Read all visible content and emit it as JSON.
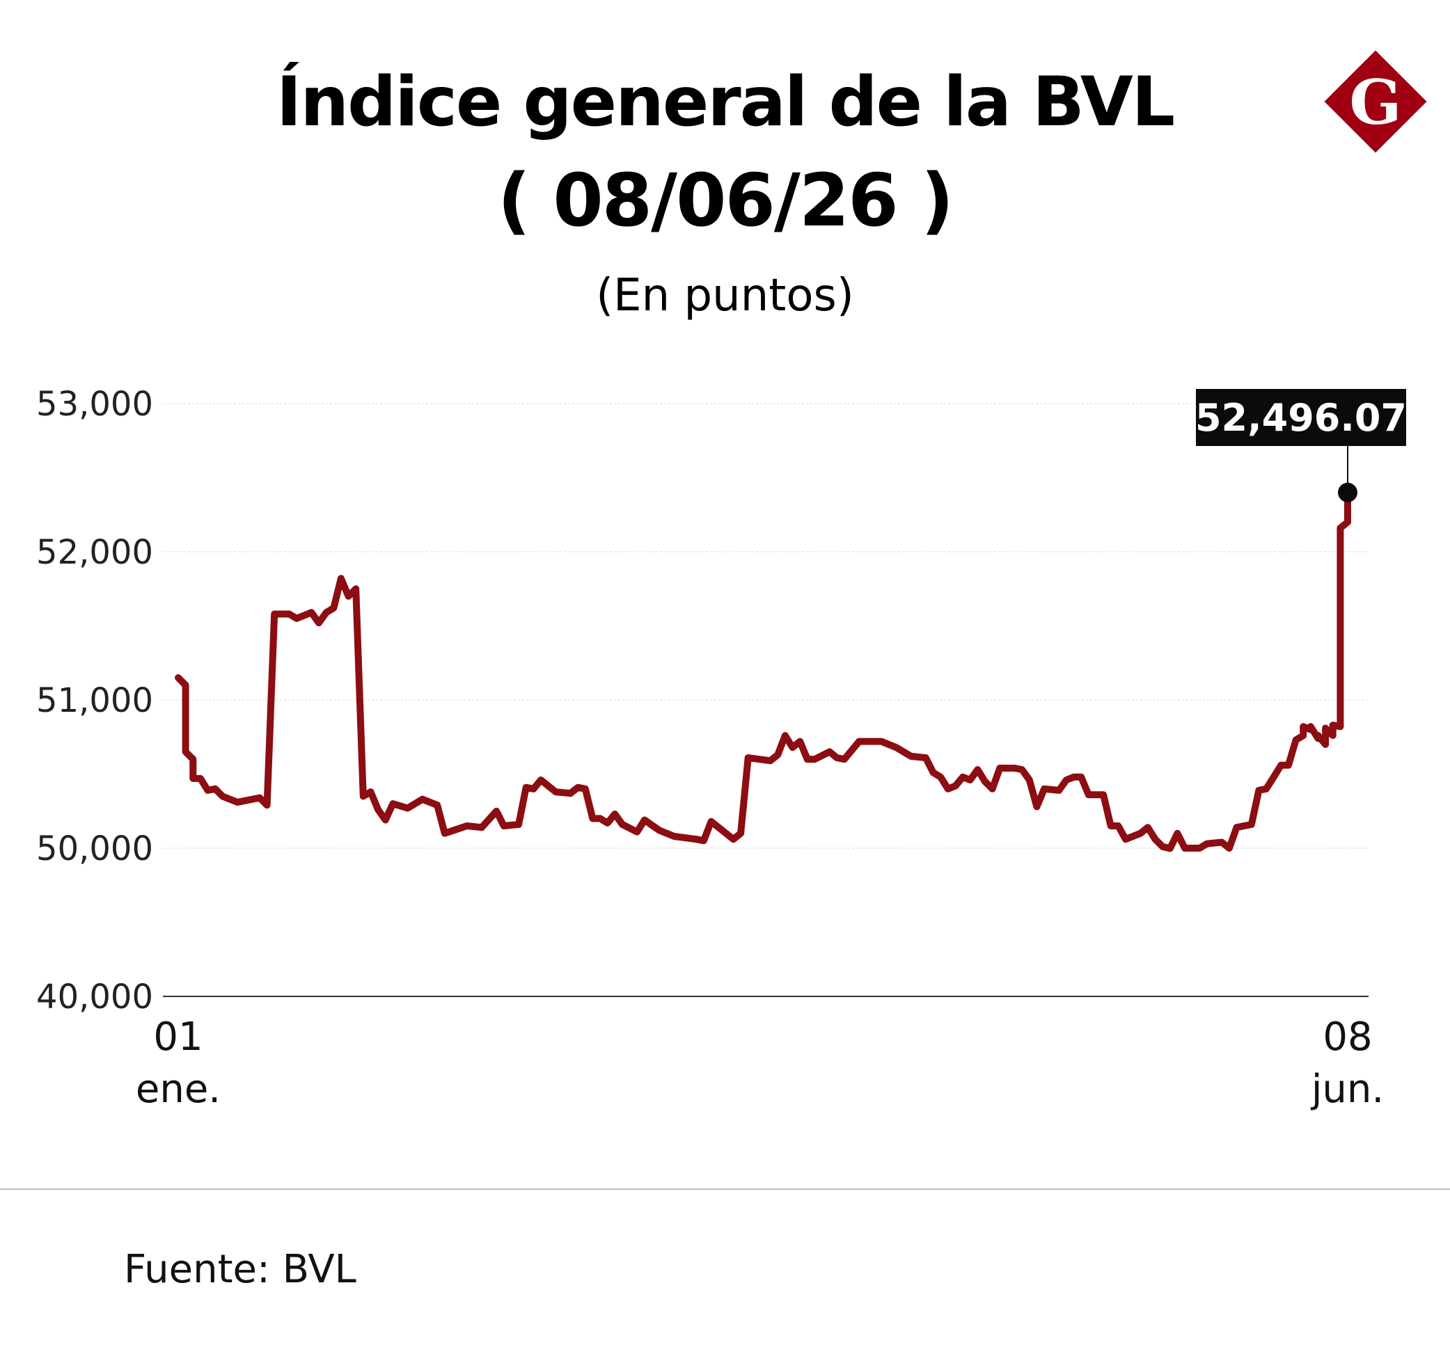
{
  "header": {
    "title_line_1": "Índice general de la BVL",
    "title_line_2": "( 08/06/26 )",
    "subtitle": "(En puntos)"
  },
  "logo": {
    "letter": "G",
    "color": "#a00012",
    "icon": "diamond-g-logo"
  },
  "footer": {
    "source": "Fuente: BVL"
  },
  "chart_data": {
    "type": "line",
    "title": "Índice general de la BVL",
    "subtitle": "(En puntos)",
    "y_ticks": [
      "53,000",
      "52,000",
      "51,000",
      "50,000",
      "40,000"
    ],
    "y_tick_values": [
      53000,
      52000,
      51000,
      50000,
      40000
    ],
    "y_scale_note": "non-linear axis: break between 40,000 and 50,000",
    "x_ticks": [
      {
        "day": "01",
        "month": "ene.",
        "date": "2026-01-01"
      },
      {
        "day": "08",
        "month": "jun.",
        "date": "2026-06-08"
      }
    ],
    "grid": true,
    "line_color": "#8c0d12",
    "last_value_label": "52,496.07",
    "last_point": {
      "date": "2026-06-08",
      "value": 52400
    },
    "series": [
      {
        "points": [
          [
            "2026-01-01",
            51150
          ],
          [
            "2026-01-02",
            51100
          ],
          [
            "2026-01-02",
            50650
          ],
          [
            "2026-01-03",
            50600
          ],
          [
            "2026-01-03",
            50470
          ],
          [
            "2026-01-04",
            50470
          ],
          [
            "2026-01-05",
            50390
          ],
          [
            "2026-01-06",
            50400
          ],
          [
            "2026-01-07",
            50350
          ],
          [
            "2026-01-09",
            50310
          ],
          [
            "2026-01-12",
            50340
          ],
          [
            "2026-01-13",
            50290
          ],
          [
            "2026-01-14",
            51580
          ],
          [
            "2026-01-16",
            51580
          ],
          [
            "2026-01-17",
            51550
          ],
          [
            "2026-01-19",
            51590
          ],
          [
            "2026-01-20",
            51520
          ],
          [
            "2026-01-21",
            51590
          ],
          [
            "2026-01-22",
            51620
          ],
          [
            "2026-01-23",
            51820
          ],
          [
            "2026-01-24",
            51700
          ],
          [
            "2026-01-25",
            51750
          ],
          [
            "2026-01-26",
            50350
          ],
          [
            "2026-01-27",
            50380
          ],
          [
            "2026-01-28",
            50260
          ],
          [
            "2026-01-29",
            50190
          ],
          [
            "2026-01-30",
            50300
          ],
          [
            "2026-02-01",
            50270
          ],
          [
            "2026-02-03",
            50330
          ],
          [
            "2026-02-05",
            50290
          ],
          [
            "2026-02-06",
            50100
          ],
          [
            "2026-02-09",
            50150
          ],
          [
            "2026-02-11",
            50140
          ],
          [
            "2026-02-13",
            50250
          ],
          [
            "2026-02-14",
            50150
          ],
          [
            "2026-02-16",
            50160
          ],
          [
            "2026-02-17",
            50410
          ],
          [
            "2026-02-18",
            50400
          ],
          [
            "2026-02-19",
            50460
          ],
          [
            "2026-02-21",
            50380
          ],
          [
            "2026-02-23",
            50370
          ],
          [
            "2026-02-24",
            50410
          ],
          [
            "2026-02-25",
            50400
          ],
          [
            "2026-02-26",
            50200
          ],
          [
            "2026-02-27",
            50200
          ],
          [
            "2026-02-28",
            50170
          ],
          [
            "2026-03-01",
            50230
          ],
          [
            "2026-03-02",
            50160
          ],
          [
            "2026-03-04",
            50110
          ],
          [
            "2026-03-05",
            50190
          ],
          [
            "2026-03-07",
            50120
          ],
          [
            "2026-03-09",
            50080
          ],
          [
            "2026-03-12",
            50060
          ],
          [
            "2026-03-13",
            50050
          ],
          [
            "2026-03-14",
            50180
          ],
          [
            "2026-03-17",
            50060
          ],
          [
            "2026-03-18",
            50100
          ],
          [
            "2026-03-19",
            50610
          ],
          [
            "2026-03-22",
            50590
          ],
          [
            "2026-03-23",
            50630
          ],
          [
            "2026-03-24",
            50760
          ],
          [
            "2026-03-25",
            50680
          ],
          [
            "2026-03-26",
            50720
          ],
          [
            "2026-03-27",
            50600
          ],
          [
            "2026-03-28",
            50600
          ],
          [
            "2026-03-30",
            50650
          ],
          [
            "2026-03-31",
            50610
          ],
          [
            "2026-04-01",
            50600
          ],
          [
            "2026-04-03",
            50720
          ],
          [
            "2026-04-06",
            50720
          ],
          [
            "2026-04-08",
            50680
          ],
          [
            "2026-04-10",
            50620
          ],
          [
            "2026-04-12",
            50610
          ],
          [
            "2026-04-13",
            50510
          ],
          [
            "2026-04-14",
            50480
          ],
          [
            "2026-04-15",
            50400
          ],
          [
            "2026-04-16",
            50420
          ],
          [
            "2026-04-17",
            50480
          ],
          [
            "2026-04-18",
            50460
          ],
          [
            "2026-04-19",
            50530
          ],
          [
            "2026-04-20",
            50450
          ],
          [
            "2026-04-21",
            50400
          ],
          [
            "2026-04-22",
            50540
          ],
          [
            "2026-04-24",
            50540
          ],
          [
            "2026-04-25",
            50530
          ],
          [
            "2026-04-26",
            50460
          ],
          [
            "2026-04-27",
            50280
          ],
          [
            "2026-04-28",
            50400
          ],
          [
            "2026-04-30",
            50390
          ],
          [
            "2026-05-01",
            50460
          ],
          [
            "2026-05-02",
            50480
          ],
          [
            "2026-05-03",
            50480
          ],
          [
            "2026-05-04",
            50360
          ],
          [
            "2026-05-06",
            50360
          ],
          [
            "2026-05-07",
            50150
          ],
          [
            "2026-05-08",
            50150
          ],
          [
            "2026-05-09",
            50060
          ],
          [
            "2026-05-11",
            50100
          ],
          [
            "2026-05-12",
            50140
          ],
          [
            "2026-05-13",
            50060
          ],
          [
            "2026-05-14",
            50010
          ],
          [
            "2026-05-15",
            49980
          ],
          [
            "2026-05-16",
            50100
          ],
          [
            "2026-05-17",
            50000
          ],
          [
            "2026-05-19",
            50000
          ],
          [
            "2026-05-20",
            50030
          ],
          [
            "2026-05-22",
            50040
          ],
          [
            "2026-05-23",
            50000
          ],
          [
            "2026-05-24",
            50140
          ],
          [
            "2026-05-26",
            50160
          ],
          [
            "2026-05-27",
            50390
          ],
          [
            "2026-05-28",
            50400
          ],
          [
            "2026-05-29",
            50480
          ],
          [
            "2026-05-30",
            50560
          ],
          [
            "2026-05-31",
            50560
          ],
          [
            "2026-06-01",
            50730
          ],
          [
            "2026-06-02",
            50760
          ],
          [
            "2026-06-02",
            50820
          ],
          [
            "2026-06-03",
            50800
          ],
          [
            "2026-06-03",
            50820
          ],
          [
            "2026-06-04",
            50740
          ],
          [
            "2026-06-04",
            50760
          ],
          [
            "2026-06-05",
            50700
          ],
          [
            "2026-06-05",
            50810
          ],
          [
            "2026-06-06",
            50760
          ],
          [
            "2026-06-06",
            50830
          ],
          [
            "2026-06-07",
            50820
          ],
          [
            "2026-06-07",
            50850
          ],
          [
            "2026-06-07",
            52160
          ],
          [
            "2026-06-08",
            52200
          ],
          [
            "2026-06-08",
            52400
          ]
        ]
      }
    ]
  }
}
